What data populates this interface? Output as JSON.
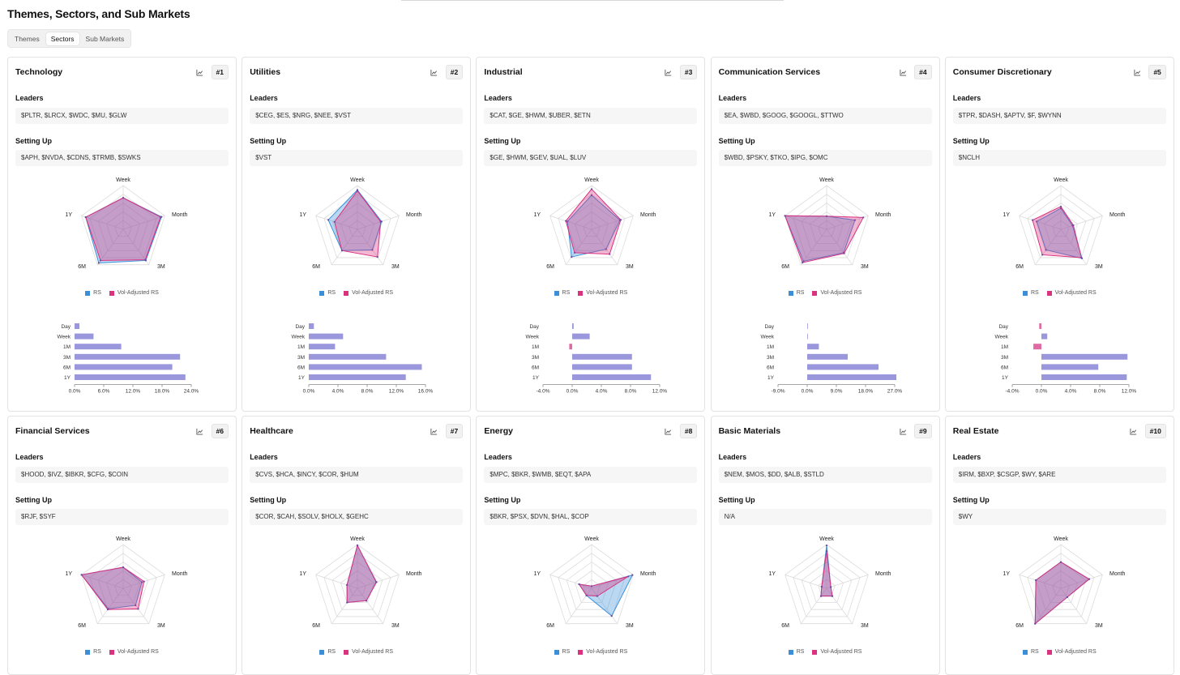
{
  "page": {
    "title": "Themes, Sectors, and Sub Markets"
  },
  "tabs": [
    {
      "label": "Themes",
      "active": false
    },
    {
      "label": "Sectors",
      "active": true
    },
    {
      "label": "Sub Markets",
      "active": false
    }
  ],
  "labels": {
    "leaders": "Leaders",
    "setting_up": "Setting Up",
    "legend_rs": "RS",
    "legend_vol": "Vol-Adjusted RS"
  },
  "colors": {
    "rs": "#3b8fd9",
    "vol": "#d9327f",
    "bar": "#9b97dc",
    "bar_neg": "#e06aa3"
  },
  "radar_axes": [
    "Week",
    "Month",
    "3M",
    "6M",
    "1Y"
  ],
  "bar_categories": [
    "Day",
    "Week",
    "1M",
    "3M",
    "6M",
    "1Y"
  ],
  "cards": [
    {
      "name": "Technology",
      "rank": "#1",
      "leaders": "$PLTR, $LRCX, $WDC, $MU, $GLW",
      "setting_up": "$APH, $NVDA, $CDNS, $TRMB, $SWKS",
      "radar": {
        "rs": [
          0.72,
          0.92,
          0.88,
          0.95,
          0.9
        ],
        "vol": [
          0.72,
          0.9,
          0.86,
          0.88,
          0.9
        ]
      },
      "bars": {
        "values": [
          1.0,
          3.9,
          9.6,
          21.7,
          20.1,
          22.8
        ],
        "ticks": [
          "0.0%",
          "6.0%",
          "12.0%",
          "18.0%",
          "24.0%"
        ],
        "min": 0,
        "max": 24
      }
    },
    {
      "name": "Utilities",
      "rank": "#2",
      "leaders": "$CEG, $ES, $NRG, $NEE, $VST",
      "setting_up": "$VST",
      "radar": {
        "rs": [
          0.9,
          0.58,
          0.58,
          0.6,
          0.7
        ],
        "vol": [
          0.88,
          0.56,
          0.78,
          0.6,
          0.55
        ]
      },
      "bars": {
        "values": [
          0.7,
          4.7,
          3.6,
          10.6,
          15.5,
          13.3
        ],
        "ticks": [
          "0.0%",
          "4.0%",
          "8.0%",
          "12.0%",
          "16.0%"
        ],
        "min": 0,
        "max": 16
      }
    },
    {
      "name": "Industrial",
      "rank": "#3",
      "leaders": "$CAT, $GE, $HWM, $UBER, $ETN",
      "setting_up": "$GE, $HWM, $GEV, $UAL, $LUV",
      "radar": {
        "rs": [
          0.78,
          0.68,
          0.56,
          0.78,
          0.58
        ],
        "vol": [
          0.92,
          0.7,
          0.7,
          0.66,
          0.62
        ]
      },
      "bars": {
        "values": [
          0.2,
          2.4,
          -0.4,
          8.2,
          8.2,
          10.8
        ],
        "ticks": [
          "-4.0%",
          "0.0%",
          "4.0%",
          "8.0%",
          "12.0%"
        ],
        "min": -4,
        "max": 12
      }
    },
    {
      "name": "Communication Services",
      "rank": "#4",
      "leaders": "$EA, $WBD, $GOOG, $GOOGL, $TTWO",
      "setting_up": "$WBD, $PSKY, $TKO, $IPG, $OMC",
      "radar": {
        "rs": [
          0.3,
          0.68,
          0.66,
          0.9,
          1.0
        ],
        "vol": [
          0.3,
          0.88,
          0.68,
          0.94,
          1.0
        ]
      },
      "bars": {
        "values": [
          0.1,
          0.2,
          3.6,
          12.5,
          22.0,
          27.5
        ],
        "ticks": [
          "-9.0%",
          "0.0%",
          "9.0%",
          "18.0%",
          "27.0%"
        ],
        "min": -9,
        "max": 27
      }
    },
    {
      "name": "Consumer Discretionary",
      "rank": "#5",
      "leaders": "$TPR, $DASH, $APTV, $F, $WYNN",
      "setting_up": "$NCLH",
      "radar": {
        "rs": [
          0.48,
          0.28,
          0.82,
          0.58,
          0.58
        ],
        "vol": [
          0.52,
          0.3,
          0.8,
          0.72,
          0.68
        ]
      },
      "bars": {
        "values": [
          -0.3,
          0.8,
          -1.1,
          11.8,
          7.8,
          11.7
        ],
        "ticks": [
          "-4.0%",
          "0.0%",
          "4.0%",
          "8.0%",
          "12.0%"
        ],
        "min": -4,
        "max": 12
      }
    },
    {
      "name": "Financial Services",
      "rank": "#6",
      "leaders": "$HOOD, $IVZ, $IBKR, $CFG, $COIN",
      "setting_up": "$RJF, $SYF",
      "radar": {
        "rs": [
          0.48,
          0.45,
          0.48,
          0.58,
          1.0
        ],
        "vol": [
          0.48,
          0.5,
          0.58,
          0.6,
          1.0
        ]
      }
    },
    {
      "name": "Healthcare",
      "rank": "#7",
      "leaders": "$CVS, $HCA, $INCY, $COR, $HUM",
      "setting_up": "$COR, $CAH, $SOLV, $HOLX, $GEHC",
      "radar": {
        "rs": [
          0.98,
          0.45,
          0.35,
          0.4,
          0.25
        ],
        "vol": [
          0.98,
          0.46,
          0.35,
          0.4,
          0.25
        ]
      }
    },
    {
      "name": "Energy",
      "rank": "#8",
      "leaders": "$MPC, $BKR, $WMB, $EQT, $APA",
      "setting_up": "$BKR, $PSX, $DVN, $HAL, $COP",
      "radar": {
        "rs": [
          0.05,
          0.98,
          0.78,
          0.2,
          0.3
        ],
        "vol": [
          0.05,
          0.88,
          0.22,
          0.2,
          0.3
        ]
      }
    },
    {
      "name": "Basic Materials",
      "rank": "#9",
      "leaders": "$NEM, $MOS, $DD, $ALB, $STLD",
      "setting_up": "N/A",
      "radar": {
        "rs": [
          0.98,
          0.1,
          0.22,
          0.22,
          0.12
        ],
        "vol": [
          0.85,
          0.1,
          0.22,
          0.22,
          0.12
        ]
      }
    },
    {
      "name": "Real Estate",
      "rank": "#10",
      "leaders": "$IRM, $BXP, $CSGP, $WY, $ARE",
      "setting_up": "$WY",
      "radar": {
        "rs": [
          0.6,
          0.68,
          0.25,
          1.0,
          0.6
        ],
        "vol": [
          0.6,
          0.68,
          0.25,
          1.0,
          0.6
        ]
      }
    }
  ]
}
